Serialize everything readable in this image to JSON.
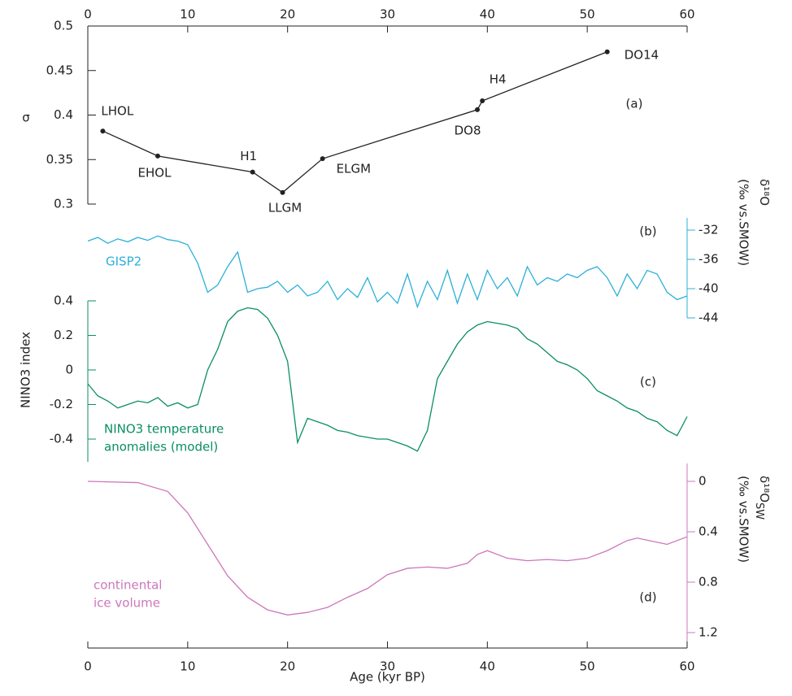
{
  "chart_data": [
    {
      "type": "line",
      "panel_label": "(a)",
      "ylabel": "σ",
      "color": "#222222",
      "markers": true,
      "xlim": [
        0,
        60
      ],
      "xticks": [
        0,
        10,
        20,
        30,
        40,
        50,
        60
      ],
      "xaxis": "top",
      "ylim": [
        0.3,
        0.5
      ],
      "yticks": [
        0.5,
        0.45,
        0.4,
        0.35,
        0.3
      ],
      "yaxis": "left",
      "x": [
        1.5,
        7,
        16.5,
        19.5,
        23.5,
        39,
        39.5,
        52
      ],
      "values": [
        0.382,
        0.354,
        0.336,
        0.313,
        0.351,
        0.406,
        0.416,
        0.471
      ],
      "labels": [
        "LHOL",
        "EHOL",
        "H1",
        "LLGM",
        "ELGM",
        "DO8",
        "H4",
        "DO14"
      ]
    },
    {
      "type": "line",
      "panel_label": "(b)",
      "ylabel": "δ¹⁸O",
      "ylabel_units": "(‰ vs.SMOW)",
      "color": "#2bb0d9",
      "series_label": [
        "GISP2"
      ],
      "xlim": [
        0,
        60
      ],
      "ylim": [
        -44,
        -32
      ],
      "yticks": [
        -32,
        -36,
        -40,
        -44
      ],
      "yaxis": "right",
      "x": [
        0,
        1,
        2,
        3,
        4,
        5,
        6,
        7,
        8,
        9,
        10,
        11,
        12,
        13,
        14,
        15,
        16,
        17,
        18,
        19,
        20,
        21,
        22,
        23,
        24,
        25,
        26,
        27,
        28,
        29,
        30,
        31,
        32,
        33,
        34,
        35,
        36,
        37,
        38,
        39,
        40,
        41,
        42,
        43,
        44,
        45,
        46,
        47,
        48,
        49,
        50,
        51,
        52,
        53,
        54,
        55,
        56,
        57,
        58,
        59,
        60
      ],
      "values": [
        -33.5,
        -33.0,
        -33.8,
        -33.2,
        -33.6,
        -33.0,
        -33.4,
        -32.8,
        -33.3,
        -33.5,
        -34.0,
        -36.5,
        -40.5,
        -39.5,
        -37.0,
        -35.0,
        -40.5,
        -40.0,
        -39.8,
        -39.0,
        -40.5,
        -39.5,
        -41.0,
        -40.5,
        -39.0,
        -41.5,
        -40.0,
        -41.2,
        -38.5,
        -41.8,
        -40.5,
        -42.0,
        -38.0,
        -42.5,
        -39.0,
        -41.5,
        -37.5,
        -42.0,
        -38.0,
        -41.5,
        -37.5,
        -40.0,
        -38.5,
        -41.0,
        -37.0,
        -39.5,
        -38.5,
        -39.0,
        -38.0,
        -38.5,
        -37.5,
        -37.0,
        -38.5,
        -41.0,
        -38.0,
        -40.0,
        -37.5,
        -38.0,
        -40.5,
        -41.5,
        -41.0
      ]
    },
    {
      "type": "line",
      "panel_label": "(c)",
      "ylabel": "NINO3 index",
      "color": "#0a8f5f",
      "series_label": [
        "NINO3 temperature",
        "anomalies (model)"
      ],
      "xlim": [
        0,
        60
      ],
      "ylim": [
        -0.4,
        0.4
      ],
      "yticks": [
        0.4,
        0.2,
        0,
        -0.2,
        -0.4
      ],
      "yaxis": "left",
      "x": [
        0,
        1,
        2,
        3,
        4,
        5,
        6,
        7,
        8,
        9,
        10,
        11,
        12,
        13,
        14,
        15,
        16,
        17,
        18,
        19,
        20,
        21,
        22,
        23,
        24,
        25,
        26,
        27,
        28,
        29,
        30,
        31,
        32,
        33,
        34,
        35,
        36,
        37,
        38,
        39,
        40,
        41,
        42,
        43,
        44,
        45,
        46,
        47,
        48,
        49,
        50,
        51,
        52,
        53,
        54,
        55,
        56,
        57,
        58,
        59,
        60
      ],
      "values": [
        -0.08,
        -0.15,
        -0.18,
        -0.22,
        -0.2,
        -0.18,
        -0.19,
        -0.16,
        -0.21,
        -0.19,
        -0.22,
        -0.2,
        0.0,
        0.12,
        0.28,
        0.34,
        0.36,
        0.35,
        0.3,
        0.2,
        0.05,
        -0.42,
        -0.28,
        -0.3,
        -0.32,
        -0.35,
        -0.36,
        -0.38,
        -0.39,
        -0.4,
        -0.4,
        -0.42,
        -0.44,
        -0.47,
        -0.35,
        -0.05,
        0.05,
        0.15,
        0.22,
        0.26,
        0.28,
        0.27,
        0.26,
        0.24,
        0.18,
        0.15,
        0.1,
        0.05,
        0.03,
        0.0,
        -0.05,
        -0.12,
        -0.15,
        -0.18,
        -0.22,
        -0.24,
        -0.28,
        -0.3,
        -0.35,
        -0.38,
        -0.27
      ]
    },
    {
      "type": "line",
      "panel_label": "(d)",
      "ylabel": "δ¹⁸O",
      "ylabel_subscript": "SW",
      "ylabel_units": "(‰ vs.SMOW)",
      "color": "#cc77bb",
      "series_label": [
        "continental",
        "ice volume"
      ],
      "xlim": [
        0,
        60
      ],
      "xticks": [
        0,
        10,
        20,
        30,
        40,
        50,
        60
      ],
      "xaxis": "bottom",
      "xlabel": "Age (kyr BP)",
      "ylim": [
        1.2,
        0
      ],
      "yticks": [
        0,
        0.4,
        0.8,
        1.2
      ],
      "yaxis": "right",
      "x": [
        0,
        5,
        8,
        10,
        12,
        14,
        16,
        18,
        20,
        22,
        24,
        26,
        28,
        30,
        32,
        34,
        36,
        38,
        39,
        40,
        42,
        44,
        46,
        48,
        50,
        52,
        54,
        55,
        58,
        60
      ],
      "values": [
        0.0,
        0.01,
        0.08,
        0.25,
        0.5,
        0.75,
        0.92,
        1.02,
        1.06,
        1.04,
        1.0,
        0.92,
        0.85,
        0.74,
        0.69,
        0.68,
        0.69,
        0.65,
        0.58,
        0.55,
        0.61,
        0.63,
        0.62,
        0.63,
        0.61,
        0.55,
        0.47,
        0.45,
        0.5,
        0.44
      ]
    }
  ]
}
